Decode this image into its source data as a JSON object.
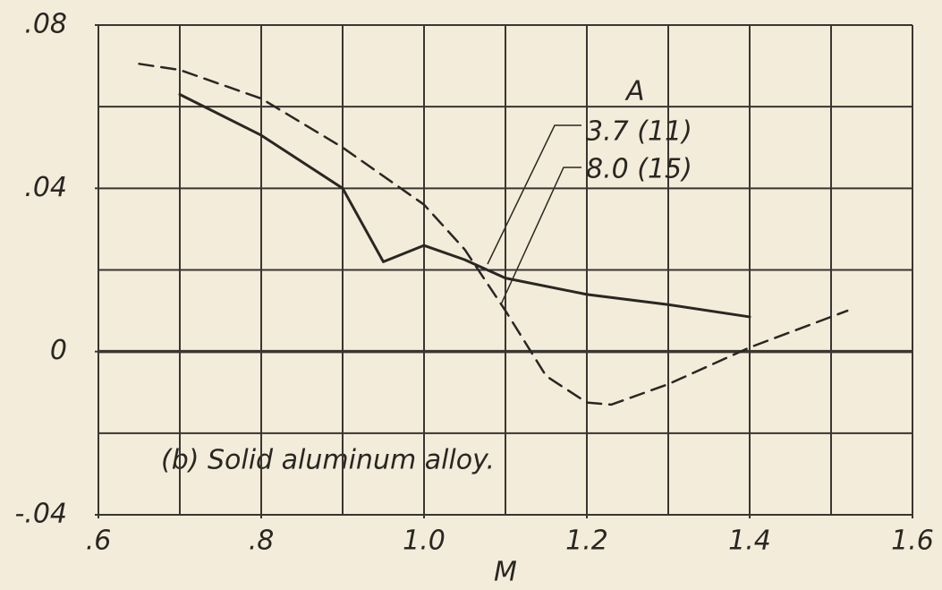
{
  "chart_data": {
    "type": "line",
    "xlabel": "M",
    "annotation": "(b) Solid aluminum alloy.",
    "legend_title": "A",
    "xlim": [
      0.6,
      1.6
    ],
    "ylim": [
      -0.04,
      0.08
    ],
    "xticks": [
      {
        "value": 0.6,
        "label": ".6"
      },
      {
        "value": 0.8,
        "label": ".8"
      },
      {
        "value": 1.0,
        "label": "1.0"
      },
      {
        "value": 1.2,
        "label": "1.2"
      },
      {
        "value": 1.4,
        "label": "1.4"
      },
      {
        "value": 1.6,
        "label": "1.6"
      }
    ],
    "yticks": [
      {
        "value": -0.04,
        "label": "-.04"
      },
      0,
      {
        "value": 0.04,
        "label": ".04"
      },
      {
        "value": 0.08,
        "label": ".08"
      }
    ],
    "xgrid": [
      0.6,
      0.7,
      0.8,
      0.9,
      1.0,
      1.1,
      1.2,
      1.3,
      1.4,
      1.5,
      1.6
    ],
    "ygrid": [
      -0.04,
      -0.02,
      0,
      0.02,
      0.04,
      0.06,
      0.08
    ],
    "grid": true,
    "series": [
      {
        "name": "3.7 (11)",
        "color": "#2a2622",
        "dashed": false,
        "x": [
          0.7,
          0.8,
          0.9,
          0.95,
          1.0,
          1.05,
          1.1,
          1.2,
          1.3,
          1.4
        ],
        "values": [
          0.063,
          0.053,
          0.04,
          0.022,
          0.026,
          0.0225,
          0.018,
          0.014,
          0.0115,
          0.0085
        ]
      },
      {
        "name": "8.0 (15)",
        "color": "#2a2622",
        "dashed": true,
        "x": [
          0.65,
          0.7,
          0.8,
          0.9,
          1.0,
          1.05,
          1.1,
          1.15,
          1.2,
          1.23,
          1.3,
          1.4,
          1.52
        ],
        "values": [
          0.0705,
          0.069,
          0.062,
          0.05,
          0.036,
          0.025,
          0.01,
          -0.006,
          -0.0125,
          -0.013,
          -0.008,
          0.001,
          0.01
        ]
      }
    ]
  }
}
